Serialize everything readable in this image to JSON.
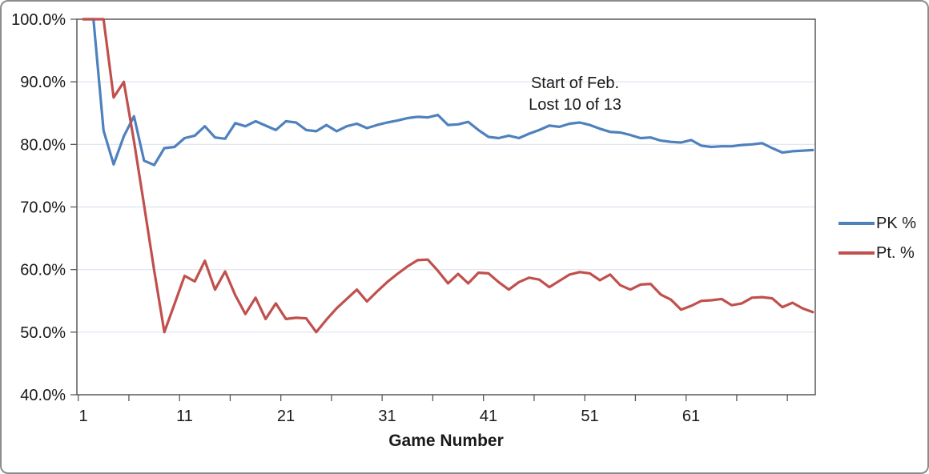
{
  "chart_data": {
    "type": "line",
    "title": "",
    "xlabel": "Game Number",
    "ylabel": "",
    "x_range": [
      1,
      73
    ],
    "x_axis": {
      "labeled_ticks": [
        1,
        11,
        21,
        31,
        41,
        51,
        61
      ],
      "minor_tick_interval": 5
    },
    "y_axis": {
      "tick_labels": [
        "100.0%",
        "90.0%",
        "80.0%",
        "70.0%",
        "60.0%",
        "50.0%",
        "40.0%"
      ],
      "tick_values": [
        100,
        90,
        80,
        70,
        60,
        50,
        40
      ],
      "ylim": [
        40,
        100
      ]
    },
    "grid": "horizontal-only",
    "legend_position": "right",
    "annotation": {
      "line1": "Start of Feb.",
      "line2": "Lost 10 of 13"
    },
    "series": [
      {
        "name": "PK %",
        "color": "#4F81BD",
        "values": [
          100,
          100,
          82.2,
          76.8,
          81.3,
          84.5,
          77.4,
          76.7,
          79.4,
          79.6,
          81.0,
          81.4,
          82.9,
          81.1,
          80.9,
          83.4,
          82.9,
          83.7,
          83.0,
          82.3,
          83.7,
          83.5,
          82.3,
          82.1,
          83.1,
          82.1,
          82.9,
          83.3,
          82.6,
          83.1,
          83.5,
          83.8,
          84.2,
          84.4,
          84.3,
          84.7,
          83.1,
          83.2,
          83.6,
          82.3,
          81.2,
          81.0,
          81.4,
          81.0,
          81.7,
          82.3,
          83.0,
          82.8,
          83.3,
          83.5,
          83.1,
          82.5,
          82.0,
          81.9,
          81.5,
          81.0,
          81.1,
          80.6,
          80.4,
          80.3,
          80.7,
          79.8,
          79.6,
          79.7,
          79.7,
          79.9,
          80.0,
          80.2,
          79.4,
          78.7,
          78.9,
          79.0,
          79.1
        ]
      },
      {
        "name": "Pt. %",
        "color": "#C0504D",
        "values": [
          100,
          100,
          100,
          87.5,
          90.0,
          80.5,
          70.3,
          59.8,
          50.0,
          54.5,
          59.0,
          58.1,
          61.4,
          56.8,
          59.7,
          55.9,
          52.9,
          55.5,
          52.1,
          54.6,
          52.1,
          52.3,
          52.2,
          50.0,
          52.0,
          53.8,
          55.3,
          56.8,
          54.9,
          56.5,
          58.0,
          59.3,
          60.5,
          61.5,
          61.6,
          59.8,
          57.8,
          59.3,
          57.8,
          59.5,
          59.4,
          58.0,
          56.8,
          58.0,
          58.7,
          58.4,
          57.2,
          58.2,
          59.2,
          59.6,
          59.4,
          58.3,
          59.2,
          57.5,
          56.8,
          57.6,
          57.7,
          56.0,
          55.2,
          53.6,
          54.2,
          55.0,
          55.1,
          55.3,
          54.3,
          54.6,
          55.5,
          55.6,
          55.4,
          54.0,
          54.7,
          53.8,
          53.2
        ]
      }
    ]
  },
  "colors": {
    "gridline": "#DCE4F0",
    "plot_border": "#3F3F3F",
    "tick": "#595959",
    "text": "#1A1A1A",
    "frame_border": "#8C8C8C",
    "background": "#FFFFFF"
  }
}
